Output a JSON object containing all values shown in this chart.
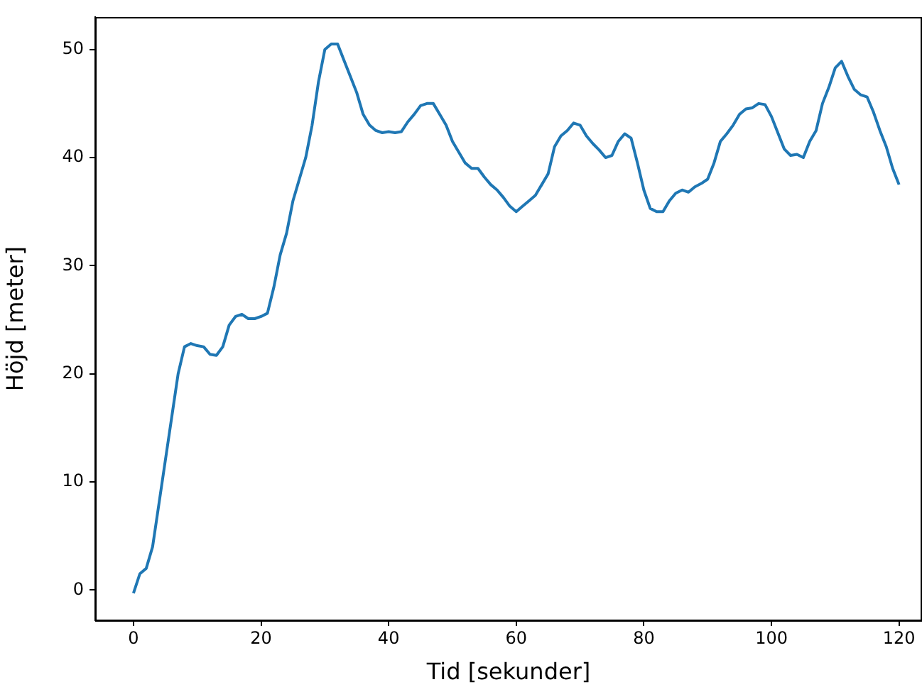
{
  "chart_data": {
    "type": "line",
    "xlabel": "Tid [sekunder]",
    "ylabel": "Höjd [meter]",
    "x": [
      0,
      1,
      2,
      3,
      4,
      5,
      6,
      7,
      8,
      9,
      10,
      11,
      12,
      13,
      14,
      15,
      16,
      17,
      18,
      19,
      20,
      21,
      22,
      23,
      24,
      25,
      26,
      27,
      28,
      29,
      30,
      31,
      32,
      33,
      34,
      35,
      36,
      37,
      38,
      39,
      40,
      41,
      42,
      43,
      44,
      45,
      46,
      47,
      48,
      49,
      50,
      51,
      52,
      53,
      54,
      55,
      56,
      57,
      58,
      59,
      60,
      61,
      62,
      63,
      64,
      65,
      66,
      67,
      68,
      69,
      70,
      71,
      72,
      73,
      74,
      75,
      76,
      77,
      78,
      79,
      80,
      81,
      82,
      83,
      84,
      85,
      86,
      87,
      88,
      89,
      90,
      91,
      92,
      93,
      94,
      95,
      96,
      97,
      98,
      99,
      100,
      101,
      102,
      103,
      104,
      105,
      106,
      107,
      108,
      109,
      110,
      111,
      112,
      113,
      114,
      115,
      116,
      117,
      118,
      119,
      120
    ],
    "series": [
      {
        "color": "#1f77b4",
        "values": [
          -0.3,
          1.5,
          2.0,
          4,
          8,
          12,
          16,
          20,
          22.5,
          22.8,
          22.6,
          22.5,
          21.8,
          21.7,
          22.5,
          24.5,
          25.3,
          25.5,
          25.1,
          25.1,
          25.3,
          25.6,
          28,
          31,
          33,
          36,
          38,
          40,
          43,
          47,
          50,
          50.5,
          50.5,
          49,
          47.5,
          46,
          44,
          43,
          42.5,
          42.3,
          42.4,
          42.3,
          42.4,
          43.3,
          44,
          44.8,
          45,
          45,
          44,
          43,
          41.5,
          40.5,
          39.5,
          39,
          39,
          38.2,
          37.5,
          37,
          36.3,
          35.5,
          35,
          35.5,
          36,
          36.5,
          37.5,
          38.5,
          41,
          42,
          42.5,
          43.2,
          43,
          42,
          41.3,
          40.7,
          40,
          40.2,
          41.5,
          42.2,
          41.8,
          39.5,
          37,
          35.3,
          35,
          35,
          36,
          36.7,
          37,
          36.8,
          37.3,
          37.6,
          38,
          39.5,
          41.5,
          42.2,
          43,
          44,
          44.5,
          44.6,
          45,
          44.9,
          43.8,
          42.3,
          40.8,
          40.2,
          40.3,
          40,
          41.5,
          42.5,
          45,
          46.5,
          48.3,
          48.9,
          47.5,
          46.3,
          45.8,
          45.6,
          44.2,
          42.5,
          41,
          39,
          37.5
        ]
      }
    ],
    "xlim": [
      -6,
      123.6
    ],
    "ylim": [
      -2.8,
      53
    ],
    "xticks": [
      0,
      20,
      40,
      60,
      80,
      100,
      120
    ],
    "yticks": [
      0,
      10,
      20,
      30,
      40,
      50
    ],
    "marker": "none",
    "line_style": "solid",
    "legend": false
  }
}
